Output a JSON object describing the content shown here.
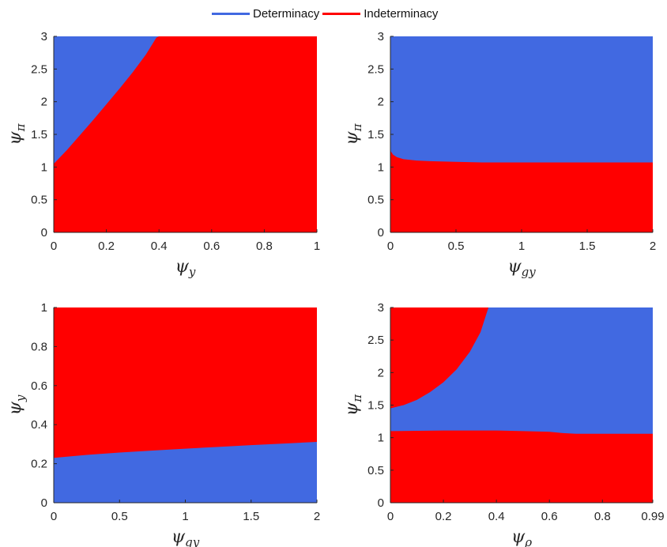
{
  "legend": {
    "items": [
      {
        "label": "Determinacy",
        "color": "#4169E1"
      },
      {
        "label": "Indeterminacy",
        "color": "#FF0000"
      }
    ]
  },
  "colors": {
    "determinacy": "#4169E1",
    "indeterminacy": "#FF0000"
  },
  "chart_data": [
    {
      "type": "area",
      "xlabel": {
        "main": "ψ",
        "sub": "y"
      },
      "ylabel": {
        "main": "ψ",
        "sub": "π"
      },
      "xlim": [
        0,
        1
      ],
      "ylim": [
        0,
        3
      ],
      "xticks": [
        0,
        0.2,
        0.4,
        0.6,
        0.8,
        1
      ],
      "xtick_labels": [
        "0",
        "0.2",
        "0.4",
        "0.6",
        "0.8",
        "1"
      ],
      "yticks": [
        0,
        0.5,
        1,
        1.5,
        2,
        2.5,
        3
      ],
      "ytick_labels": [
        "0",
        "0.5",
        "1",
        "1.5",
        "2",
        "2.5",
        "3"
      ],
      "background_region": "determinacy",
      "regions": [
        {
          "region": "indeterminacy",
          "x": [
            0,
            0.05,
            0.1,
            0.15,
            0.2,
            0.25,
            0.3,
            0.35,
            0.39,
            0.4,
            1.0
          ],
          "y_lower": [
            0,
            0,
            0,
            0,
            0,
            0,
            0,
            0,
            0,
            0,
            0
          ],
          "y_upper": [
            1.05,
            1.26,
            1.49,
            1.72,
            1.96,
            2.2,
            2.45,
            2.72,
            2.98,
            3.0,
            3.0
          ]
        }
      ]
    },
    {
      "type": "area",
      "xlabel": {
        "main": "ψ",
        "sub": "gy"
      },
      "ylabel": {
        "main": "ψ",
        "sub": "π"
      },
      "xlim": [
        0,
        2
      ],
      "ylim": [
        0,
        3
      ],
      "xticks": [
        0,
        0.5,
        1,
        1.5,
        2
      ],
      "xtick_labels": [
        "0",
        "0.5",
        "1",
        "1.5",
        "2"
      ],
      "yticks": [
        0,
        0.5,
        1,
        1.5,
        2,
        2.5,
        3
      ],
      "ytick_labels": [
        "0",
        "0.5",
        "1",
        "1.5",
        "2",
        "2.5",
        "3"
      ],
      "background_region": "determinacy",
      "regions": [
        {
          "region": "indeterminacy",
          "x": [
            0,
            0.02,
            0.05,
            0.1,
            0.2,
            0.3,
            0.5,
            0.7,
            1.0,
            1.5,
            2.0
          ],
          "y_lower": [
            0,
            0,
            0,
            0,
            0,
            0,
            0,
            0,
            0,
            0,
            0
          ],
          "y_upper": [
            1.25,
            1.19,
            1.15,
            1.12,
            1.1,
            1.09,
            1.08,
            1.07,
            1.07,
            1.07,
            1.07
          ]
        }
      ]
    },
    {
      "type": "area",
      "xlabel": {
        "main": "ψ",
        "sub": "gy"
      },
      "ylabel": {
        "main": "ψ",
        "sub": "y"
      },
      "xlim": [
        0,
        2
      ],
      "ylim": [
        0,
        1
      ],
      "xticks": [
        0,
        0.5,
        1,
        1.5,
        2
      ],
      "xtick_labels": [
        "0",
        "0.5",
        "1",
        "1.5",
        "2"
      ],
      "yticks": [
        0,
        0.2,
        0.4,
        0.6,
        0.8,
        1
      ],
      "ytick_labels": [
        "0",
        "0.2",
        "0.4",
        "0.6",
        "0.8",
        "1"
      ],
      "background_region": "indeterminacy",
      "regions": [
        {
          "region": "determinacy",
          "x": [
            0,
            0.25,
            0.5,
            0.75,
            1.0,
            1.25,
            1.5,
            1.75,
            2.0
          ],
          "y_lower": [
            0,
            0,
            0,
            0,
            0,
            0,
            0,
            0,
            0
          ],
          "y_upper": [
            0.23,
            0.245,
            0.257,
            0.267,
            0.277,
            0.286,
            0.295,
            0.303,
            0.312
          ]
        }
      ]
    },
    {
      "type": "area",
      "xlabel": {
        "main": "ψ",
        "sub": "ρ"
      },
      "ylabel": {
        "main": "ψ",
        "sub": "π"
      },
      "xlim": [
        0,
        0.99
      ],
      "ylim": [
        0,
        3
      ],
      "xticks": [
        0,
        0.2,
        0.4,
        0.6,
        0.8,
        0.99
      ],
      "xtick_labels": [
        "0",
        "0.2",
        "0.4",
        "0.6",
        "0.8",
        "0.99"
      ],
      "yticks": [
        0,
        0.5,
        1,
        1.5,
        2,
        2.5,
        3
      ],
      "ytick_labels": [
        "0",
        "0.5",
        "1",
        "1.5",
        "2",
        "2.5",
        "3"
      ],
      "background_region": "determinacy",
      "regions": [
        {
          "region": "indeterminacy",
          "x": [
            0,
            0.2,
            0.4,
            0.5,
            0.6,
            0.65,
            0.7,
            0.8,
            0.9,
            0.99
          ],
          "y_lower": [
            0,
            0,
            0,
            0,
            0,
            0,
            0,
            0,
            0,
            0
          ],
          "y_upper": [
            1.1,
            1.11,
            1.11,
            1.1,
            1.09,
            1.07,
            1.06,
            1.06,
            1.06,
            1.06
          ]
        },
        {
          "region": "indeterminacy",
          "x": [
            0,
            0.05,
            0.1,
            0.15,
            0.2,
            0.25,
            0.3,
            0.34,
            0.37
          ],
          "y_lower": [
            1.45,
            1.5,
            1.58,
            1.7,
            1.85,
            2.05,
            2.32,
            2.62,
            3.0
          ],
          "y_upper": [
            3,
            3,
            3,
            3,
            3,
            3,
            3,
            3,
            3
          ]
        }
      ]
    }
  ]
}
